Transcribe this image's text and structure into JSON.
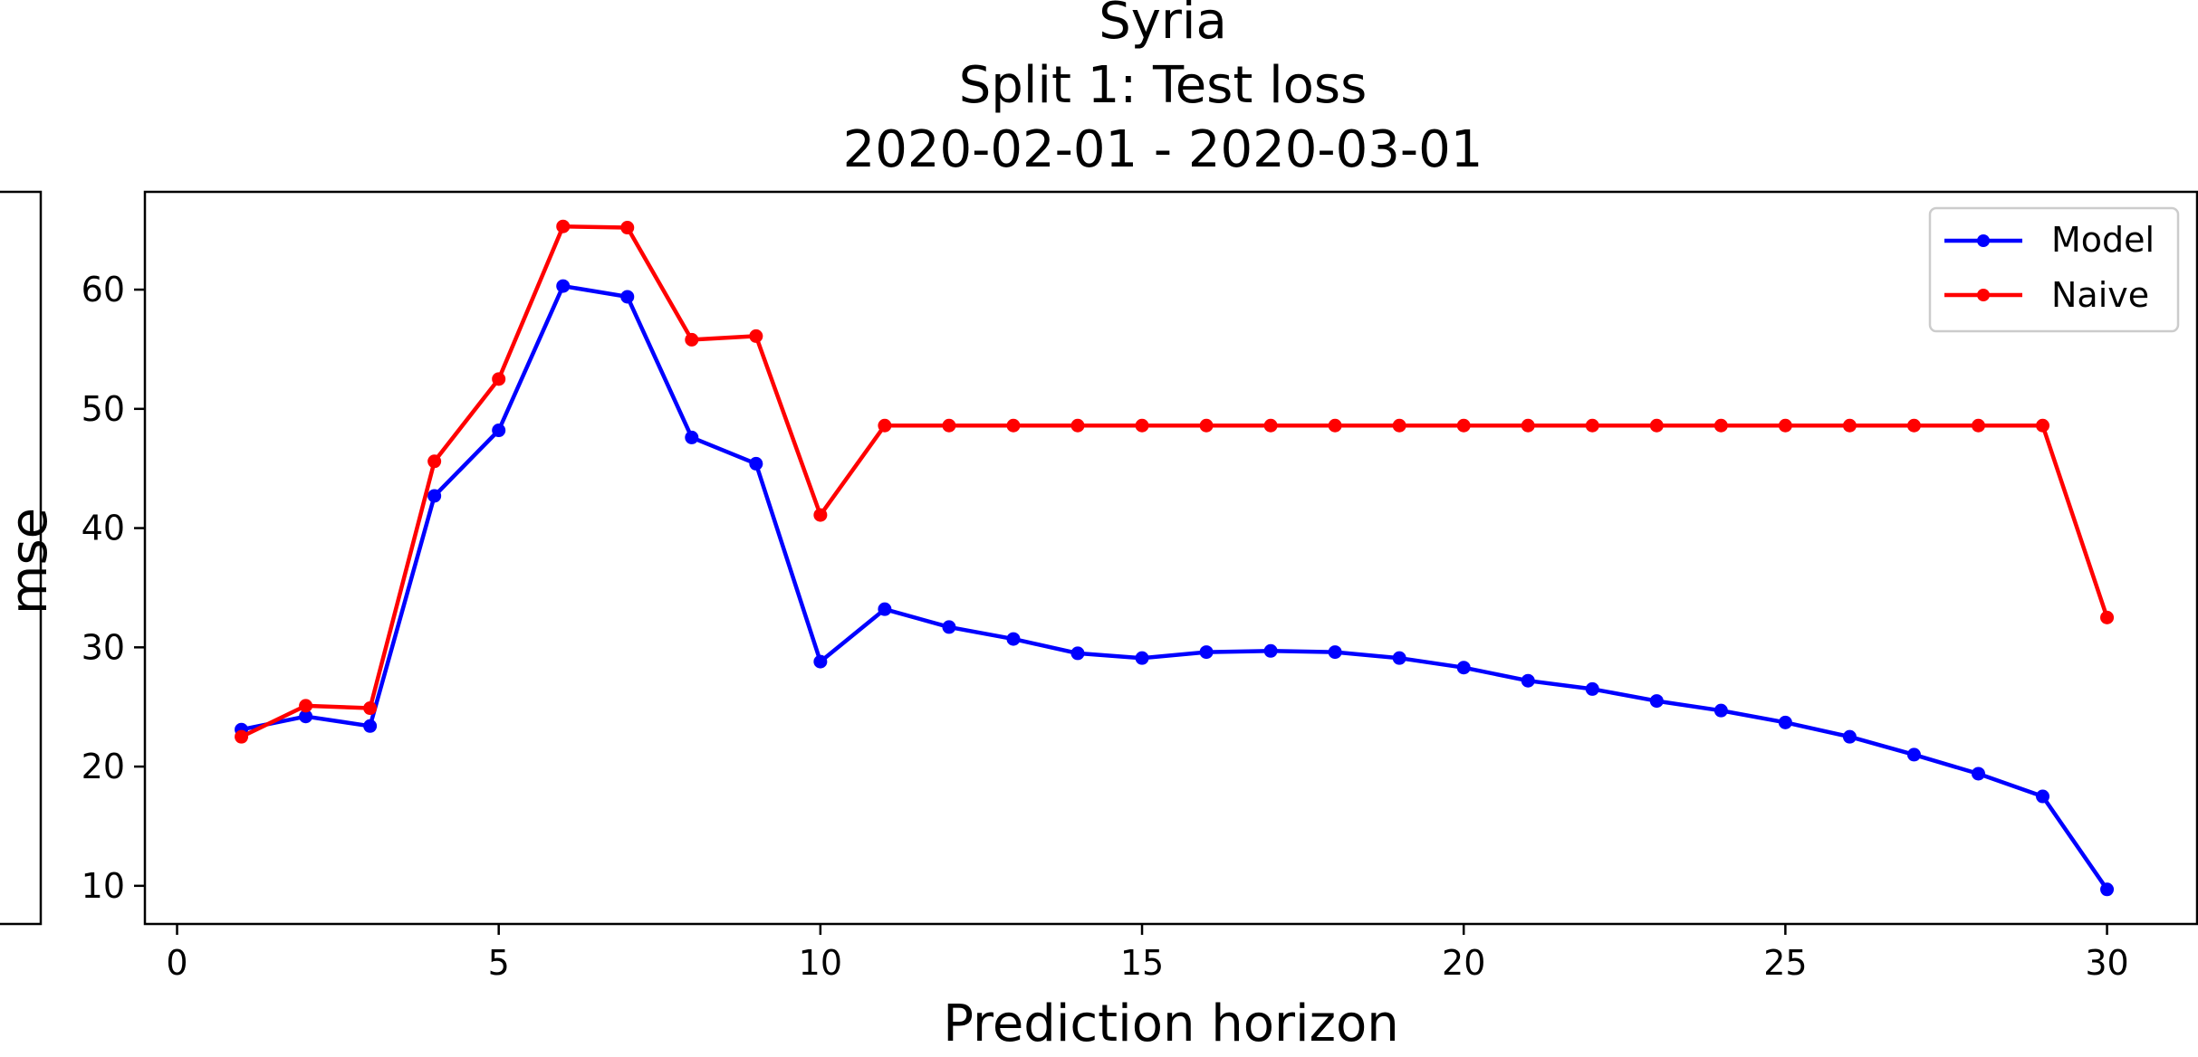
{
  "chart_data": {
    "type": "line",
    "title": [
      "Syria",
      "Split 1: Test loss",
      "2020-02-01 - 2020-03-01"
    ],
    "xlabel": "Prediction horizon",
    "ylabel": "mse",
    "xlim": [
      -0.5,
      31.4
    ],
    "ylim": [
      6.8,
      68.2
    ],
    "xticks": [
      0,
      5,
      10,
      15,
      20,
      25,
      30
    ],
    "yticks": [
      10,
      20,
      30,
      40,
      50,
      60
    ],
    "grid": false,
    "legend_position": "top-right",
    "x": [
      1,
      2,
      3,
      4,
      5,
      6,
      7,
      8,
      9,
      10,
      11,
      12,
      13,
      14,
      15,
      16,
      17,
      18,
      19,
      20,
      21,
      22,
      23,
      24,
      25,
      26,
      27,
      28,
      29,
      30
    ],
    "series": [
      {
        "name": "Model",
        "color": "#0000ff",
        "values": [
          23.1,
          24.2,
          23.4,
          42.7,
          48.2,
          60.3,
          59.4,
          47.6,
          45.4,
          28.8,
          33.2,
          31.7,
          30.7,
          29.5,
          29.1,
          29.6,
          29.7,
          29.6,
          29.1,
          28.3,
          27.2,
          26.5,
          25.5,
          24.7,
          23.7,
          22.5,
          21.0,
          19.4,
          17.5,
          9.7
        ]
      },
      {
        "name": "Naive",
        "color": "#ff0000",
        "values": [
          22.5,
          25.1,
          24.9,
          45.6,
          52.5,
          65.3,
          65.2,
          55.8,
          56.1,
          41.1,
          48.6,
          48.6,
          48.6,
          48.6,
          48.6,
          48.6,
          48.6,
          48.6,
          48.6,
          48.6,
          48.6,
          48.6,
          48.6,
          48.6,
          48.6,
          48.6,
          48.6,
          48.6,
          48.6,
          32.5
        ]
      }
    ]
  }
}
